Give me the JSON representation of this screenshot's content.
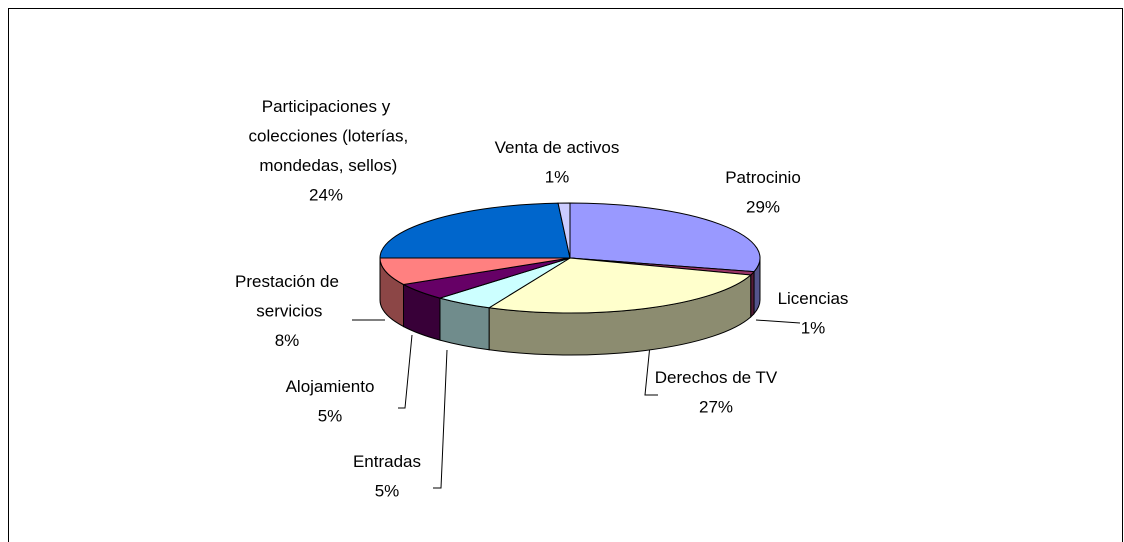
{
  "chart_data": {
    "type": "pie",
    "categories": [
      "Patrocinio",
      "Licencias",
      "Derechos de TV",
      "Entradas",
      "Alojamiento",
      "Prestación de servicios",
      "Participaciones y colecciones (loterías, mondedas, sellos)",
      "Venta de activos"
    ],
    "values": [
      29,
      1,
      27,
      5,
      5,
      8,
      24,
      1
    ],
    "value_labels": [
      "29%",
      "1%",
      "27%",
      "5%",
      "5%",
      "8%",
      "24%",
      "1%"
    ],
    "colors": [
      "#9999ff",
      "#993366",
      "#ffffcc",
      "#ccffff",
      "#660066",
      "#ff8080",
      "#0066cc",
      "#ccccff"
    ]
  }
}
